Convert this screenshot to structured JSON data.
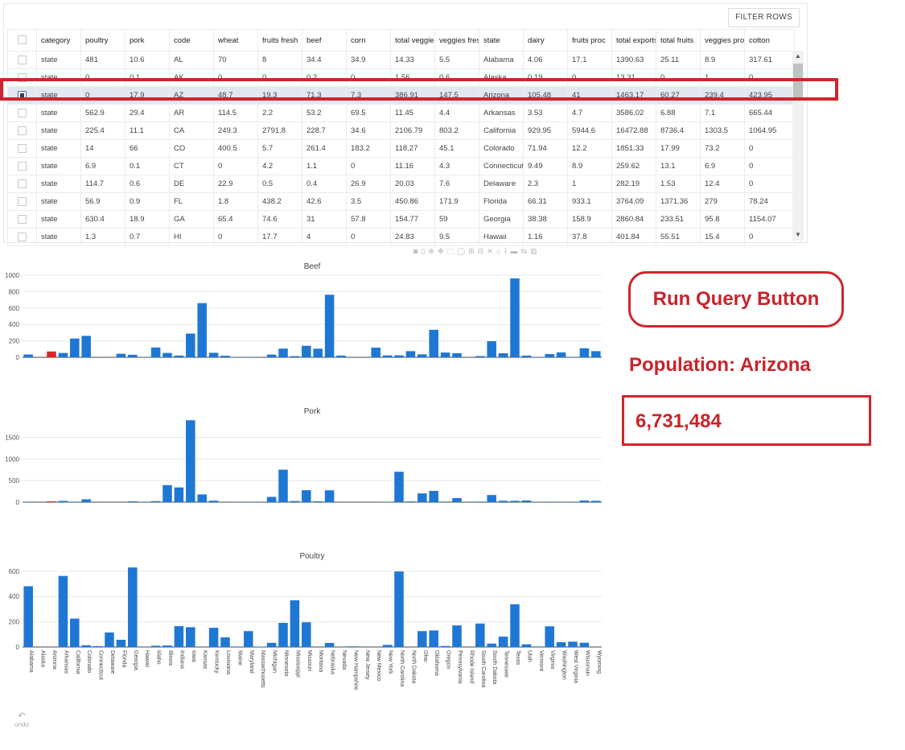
{
  "table": {
    "filter_label": "FILTER ROWS",
    "columns": [
      "category",
      "poultry",
      "pork",
      "code",
      "wheat",
      "fruits fresh",
      "beef",
      "corn",
      "total veggies",
      "veggies fresh",
      "state",
      "dairy",
      "fruits proc",
      "total exports",
      "total fruits",
      "veggies proc",
      "cotton"
    ],
    "rows": [
      {
        "cells": [
          "state",
          "481",
          "10.6",
          "AL",
          "70",
          "8",
          "34.4",
          "34.9",
          "14.33",
          "5.5",
          "Alabama",
          "4.06",
          "17.1",
          "1390.63",
          "25.11",
          "8.9",
          "317.61"
        ],
        "selected": false
      },
      {
        "cells": [
          "state",
          "0",
          "0.1",
          "AK",
          "0",
          "0",
          "0.2",
          "0",
          "1.56",
          "0.6",
          "Alaska",
          "0.19",
          "0",
          "13.31",
          "0",
          "1",
          "0"
        ],
        "selected": false
      },
      {
        "cells": [
          "state",
          "0",
          "17.9",
          "AZ",
          "48.7",
          "19.3",
          "71.3",
          "7.3",
          "386.91",
          "147.5",
          "Arizona",
          "105.48",
          "41",
          "1463.17",
          "60.27",
          "239.4",
          "423.95"
        ],
        "selected": true
      },
      {
        "cells": [
          "state",
          "562.9",
          "29.4",
          "AR",
          "114.5",
          "2.2",
          "53.2",
          "69.5",
          "11.45",
          "4.4",
          "Arkansas",
          "3.53",
          "4.7",
          "3586.02",
          "6.88",
          "7.1",
          "665.44"
        ],
        "selected": false
      },
      {
        "cells": [
          "state",
          "225.4",
          "11.1",
          "CA",
          "249.3",
          "2791.8",
          "228.7",
          "34.6",
          "2106.79",
          "803.2",
          "California",
          "929.95",
          "5944.6",
          "16472.88",
          "8736.4",
          "1303.5",
          "1064.95"
        ],
        "selected": false
      },
      {
        "cells": [
          "state",
          "14",
          "66",
          "CO",
          "400.5",
          "5.7",
          "261.4",
          "183.2",
          "118.27",
          "45.1",
          "Colorado",
          "71.94",
          "12.2",
          "1851.33",
          "17.99",
          "73.2",
          "0"
        ],
        "selected": false
      },
      {
        "cells": [
          "state",
          "6.9",
          "0.1",
          "CT",
          "0",
          "4.2",
          "1.1",
          "0",
          "11.16",
          "4.3",
          "Connecticut",
          "9.49",
          "8.9",
          "259.62",
          "13.1",
          "6.9",
          "0"
        ],
        "selected": false
      },
      {
        "cells": [
          "state",
          "114.7",
          "0.6",
          "DE",
          "22.9",
          "0.5",
          "0.4",
          "26.9",
          "20.03",
          "7.6",
          "Delaware",
          "2.3",
          "1",
          "282.19",
          "1.53",
          "12.4",
          "0"
        ],
        "selected": false
      },
      {
        "cells": [
          "state",
          "56.9",
          "0.9",
          "FL",
          "1.8",
          "438.2",
          "42.6",
          "3.5",
          "450.86",
          "171.9",
          "Florida",
          "66.31",
          "933.1",
          "3764.09",
          "1371.36",
          "279",
          "78.24"
        ],
        "selected": false
      },
      {
        "cells": [
          "state",
          "630.4",
          "18.9",
          "GA",
          "65.4",
          "74.6",
          "31",
          "57.8",
          "154.77",
          "59",
          "Georgia",
          "38.38",
          "158.9",
          "2860.84",
          "233.51",
          "95.8",
          "1154.07"
        ],
        "selected": false
      },
      {
        "cells": [
          "state",
          "1.3",
          "0.7",
          "HI",
          "0",
          "17.7",
          "4",
          "0",
          "24.83",
          "9.5",
          "Hawaii",
          "1.16",
          "37.8",
          "401.84",
          "55.51",
          "15.4",
          "0"
        ],
        "selected": false
      }
    ]
  },
  "modebar": {
    "icons": [
      "camera-icon",
      "save-icon",
      "zoom-icon",
      "pan-icon",
      "box-select-icon",
      "lasso-icon",
      "zoom-in-icon",
      "zoom-out-icon",
      "autoscale-icon",
      "home-icon",
      "spike-icon",
      "hover-closest-icon",
      "hover-compare-icon",
      "plotly-logo-icon"
    ],
    "glyphs": [
      "◙",
      "▯",
      "⊕",
      "✥",
      "⬚",
      "◯",
      "⊞",
      "⊟",
      "✕",
      "⌂",
      "⸸",
      "▬",
      "⇆",
      "▥"
    ]
  },
  "chart_data": [
    {
      "type": "bar",
      "title": "Beef",
      "ylim": [
        0,
        1000
      ],
      "yticks": [
        0,
        200,
        400,
        600,
        800,
        1000
      ],
      "highlight_color": "#d62728",
      "bar_color": "#1f77d4",
      "categories": [
        "Alabama",
        "Alaska",
        "Arizona",
        "Arkansas",
        "California",
        "Colorado",
        "Connecticut",
        "Delaware",
        "Florida",
        "Georgia",
        "Hawaii",
        "Idaho",
        "Illinois",
        "Indiana",
        "Iowa",
        "Kansas",
        "Kentucky",
        "Louisiana",
        "Maine",
        "Maryland",
        "Massachusetts",
        "Michigan",
        "Minnesota",
        "Mississippi",
        "Missouri",
        "Montana",
        "Nebraska",
        "Nevada",
        "New Hampshire",
        "New Jersey",
        "New Mexico",
        "New York",
        "North Carolina",
        "North Dakota",
        "Ohio",
        "Oklahoma",
        "Oregon",
        "Pennsylvania",
        "Rhode Island",
        "South Carolina",
        "South Dakota",
        "Tennessee",
        "Texas",
        "Utah",
        "Vermont",
        "Virginia",
        "Washington",
        "West Virginia",
        "Wisconsin",
        "Wyoming"
      ],
      "values": [
        34,
        0,
        71,
        53,
        229,
        261,
        1,
        0,
        43,
        31,
        4,
        119,
        53,
        21,
        289,
        660,
        55,
        19,
        2,
        5,
        1,
        33,
        106,
        14,
        140,
        105,
        762,
        21,
        1,
        1,
        118,
        23,
        24,
        75,
        36,
        335,
        58,
        50,
        1,
        15,
        196,
        49,
        961,
        21,
        4,
        40,
        60,
        4,
        110,
        75
      ],
      "highlight_index": 2
    },
    {
      "type": "bar",
      "title": "Pork",
      "ylim": [
        0,
        1900
      ],
      "yticks": [
        0,
        500,
        1000,
        1500
      ],
      "bar_color": "#1f77d4",
      "highlight_color": "#d62728",
      "categories": [
        "Alabama",
        "Alaska",
        "Arizona",
        "Arkansas",
        "California",
        "Colorado",
        "Connecticut",
        "Delaware",
        "Florida",
        "Georgia",
        "Hawaii",
        "Idaho",
        "Illinois",
        "Indiana",
        "Iowa",
        "Kansas",
        "Kentucky",
        "Louisiana",
        "Maine",
        "Maryland",
        "Massachusetts",
        "Michigan",
        "Minnesota",
        "Mississippi",
        "Missouri",
        "Montana",
        "Nebraska",
        "Nevada",
        "New Hampshire",
        "New Jersey",
        "New Mexico",
        "New York",
        "North Carolina",
        "North Dakota",
        "Ohio",
        "Oklahoma",
        "Oregon",
        "Pennsylvania",
        "Rhode Island",
        "South Carolina",
        "South Dakota",
        "Tennessee",
        "Texas",
        "Utah",
        "Vermont",
        "Virginia",
        "Washington",
        "West Virginia",
        "Wisconsin",
        "Wyoming"
      ],
      "values": [
        11,
        0,
        18,
        29,
        11,
        66,
        0,
        1,
        1,
        19,
        1,
        23,
        394,
        341,
        1895,
        179,
        34,
        1,
        5,
        7,
        1,
        122,
        752,
        26,
        277,
        19,
        274,
        0,
        1,
        1,
        1,
        9,
        703,
        17,
        202,
        261,
        13,
        94,
        1,
        13,
        165,
        32,
        31,
        40,
        4,
        11,
        4,
        6,
        38,
        31
      ],
      "highlight_index": 2
    },
    {
      "type": "bar",
      "title": "Poultry",
      "ylim": [
        0,
        650
      ],
      "yticks": [
        0,
        200,
        400,
        600
      ],
      "bar_color": "#1f77d4",
      "highlight_color": "#d62728",
      "categories": [
        "Alabama",
        "Alaska",
        "Arizona",
        "Arkansas",
        "California",
        "Colorado",
        "Connecticut",
        "Delaware",
        "Florida",
        "Georgia",
        "Hawaii",
        "Idaho",
        "Illinois",
        "Indiana",
        "Iowa",
        "Kansas",
        "Kentucky",
        "Louisiana",
        "Maine",
        "Maryland",
        "Massachusetts",
        "Michigan",
        "Minnesota",
        "Mississippi",
        "Missouri",
        "Montana",
        "Nebraska",
        "Nevada",
        "New Hampshire",
        "New Jersey",
        "New Mexico",
        "New York",
        "North Carolina",
        "North Dakota",
        "Ohio",
        "Oklahoma",
        "Oregon",
        "Pennsylvania",
        "Rhode Island",
        "South Carolina",
        "South Dakota",
        "Tennessee",
        "Texas",
        "Utah",
        "Vermont",
        "Virginia",
        "Washington",
        "West Virginia",
        "Wisconsin",
        "Wyoming"
      ],
      "values": [
        481,
        0,
        0,
        563,
        225,
        14,
        7,
        115,
        57,
        630,
        1,
        10,
        12,
        165,
        157,
        0,
        152,
        76,
        4,
        126,
        3,
        33,
        191,
        370,
        196,
        0,
        32,
        0,
        5,
        0,
        0,
        17,
        598,
        0,
        126,
        131,
        8,
        171,
        0,
        186,
        27,
        82,
        338,
        21,
        4,
        164,
        38,
        42,
        34,
        0
      ],
      "highlight_index": 2
    }
  ],
  "annotations": {
    "run_query_label": "Run Query Button",
    "population_label": "Population: Arizona",
    "population_value": "6,731,484"
  },
  "undo": {
    "label": "undo",
    "icon": "undo-icon",
    "glyph": "↶"
  }
}
